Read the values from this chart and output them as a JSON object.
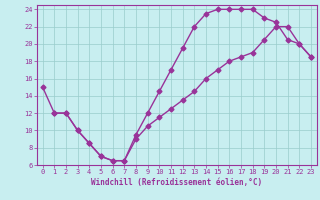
{
  "xlabel": "Windchill (Refroidissement éolien,°C)",
  "bg_color": "#c8eef0",
  "line_color": "#993399",
  "grid_color": "#99cccc",
  "xlim": [
    -0.5,
    23.5
  ],
  "ylim": [
    6,
    24.5
  ],
  "xticks": [
    0,
    1,
    2,
    3,
    4,
    5,
    6,
    7,
    8,
    9,
    10,
    11,
    12,
    13,
    14,
    15,
    16,
    17,
    18,
    19,
    20,
    21,
    22,
    23
  ],
  "yticks": [
    6,
    8,
    10,
    12,
    14,
    16,
    18,
    20,
    22,
    24
  ],
  "curve1_x": [
    0,
    1,
    2,
    3,
    4,
    5,
    6,
    7,
    8,
    9,
    10,
    11,
    12,
    13,
    14,
    15,
    16,
    17,
    18,
    19,
    20,
    21,
    22,
    23
  ],
  "curve1_y": [
    15,
    12,
    12,
    10,
    8.5,
    7,
    6.5,
    6.5,
    9.5,
    12,
    14.5,
    17,
    19.5,
    22,
    23.5,
    24,
    24,
    24,
    24,
    23,
    22.5,
    20.5,
    20,
    18.5
  ],
  "curve2_x": [
    1,
    2,
    3,
    4,
    5,
    6,
    7,
    8,
    9,
    10,
    11,
    12,
    13,
    14,
    15,
    16,
    17,
    18,
    19,
    20,
    21,
    22,
    23
  ],
  "curve2_y": [
    12,
    12,
    10,
    8.5,
    7,
    6.5,
    6.5,
    9,
    10.5,
    11.5,
    12.5,
    13.5,
    14.5,
    16,
    17,
    18,
    18.5,
    19,
    20.5,
    22,
    22,
    20,
    18.5
  ],
  "marker": "D",
  "markersize": 2.5,
  "linewidth": 1.0,
  "tick_fontsize": 5.0,
  "xlabel_fontsize": 5.5
}
